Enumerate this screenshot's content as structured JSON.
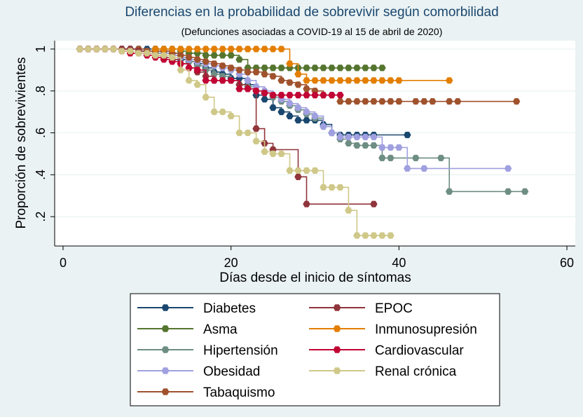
{
  "colors": {
    "background": "#eaf2f3",
    "plot_background": "#ffffff",
    "grid": "#eaf2f3",
    "axis": "#000000",
    "title": "#1a476f"
  },
  "chart_data": {
    "type": "line",
    "title": "Diferencias en la probabilidad de sobrevivir según comorbilidad",
    "subtitle": "(Defunciones asociadas a COVID-19 al 15 de abril de 2020)",
    "xlabel": "Días desde el inicio de síntomas",
    "ylabel": "Proporción de sobrevivientes",
    "xlim": [
      -1,
      61
    ],
    "ylim": [
      0.06,
      1.04
    ],
    "xticks": [
      {
        "value": 0,
        "label": "0"
      },
      {
        "value": 20,
        "label": "20"
      },
      {
        "value": 40,
        "label": "40"
      },
      {
        "value": 60,
        "label": "60"
      }
    ],
    "yticks": [
      {
        "value": 0.2,
        "label": ".2"
      },
      {
        "value": 0.4,
        "label": ".4"
      },
      {
        "value": 0.6,
        "label": ".6"
      },
      {
        "value": 0.8,
        "label": ".8"
      },
      {
        "value": 1.0,
        "label": "1"
      }
    ],
    "grid": true,
    "legend_position": "bottom",
    "series": [
      {
        "name": "Diabetes",
        "color": "#1a476f",
        "x": [
          2,
          3,
          4,
          5,
          6,
          7,
          8,
          9,
          10,
          11,
          12,
          13,
          14,
          15,
          16,
          17,
          18,
          19,
          20,
          21,
          22,
          23,
          24,
          25,
          26,
          27,
          28,
          29,
          30,
          31,
          32,
          33,
          34,
          35,
          36,
          37,
          41
        ],
        "y": [
          1,
          1,
          1,
          1,
          1,
          1,
          1,
          1,
          1,
          1,
          0.99,
          0.98,
          0.95,
          0.94,
          0.93,
          0.91,
          0.89,
          0.88,
          0.86,
          0.86,
          0.83,
          0.78,
          0.76,
          0.72,
          0.7,
          0.68,
          0.66,
          0.66,
          0.66,
          0.64,
          0.6,
          0.59,
          0.59,
          0.59,
          0.59,
          0.59,
          0.59
        ]
      },
      {
        "name": "Asma",
        "color": "#55752f",
        "x": [
          11,
          12,
          13,
          14,
          15,
          16,
          17,
          18,
          19,
          20,
          21,
          22,
          23,
          24,
          25,
          26,
          27,
          28,
          29,
          30,
          31,
          32,
          33,
          34,
          35,
          36,
          37,
          38
        ],
        "y": [
          1,
          1,
          1,
          0.99,
          0.98,
          0.98,
          0.97,
          0.97,
          0.97,
          0.97,
          0.95,
          0.91,
          0.91,
          0.91,
          0.91,
          0.91,
          0.91,
          0.91,
          0.91,
          0.91,
          0.91,
          0.91,
          0.91,
          0.91,
          0.91,
          0.91,
          0.91,
          0.91
        ]
      },
      {
        "name": "Hipertensión",
        "color": "#6e8e84",
        "x": [
          2,
          3,
          4,
          5,
          6,
          7,
          8,
          9,
          10,
          11,
          12,
          13,
          14,
          15,
          16,
          17,
          18,
          19,
          20,
          21,
          22,
          23,
          24,
          25,
          26,
          27,
          28,
          29,
          30,
          31,
          32,
          33,
          34,
          35,
          36,
          37,
          38,
          39,
          42,
          45,
          46,
          53,
          55
        ],
        "y": [
          1,
          1,
          1,
          1,
          1,
          1,
          1,
          0.99,
          0.99,
          0.98,
          0.98,
          0.97,
          0.96,
          0.94,
          0.92,
          0.9,
          0.88,
          0.87,
          0.85,
          0.83,
          0.82,
          0.8,
          0.79,
          0.77,
          0.75,
          0.73,
          0.71,
          0.69,
          0.67,
          0.63,
          0.6,
          0.57,
          0.55,
          0.54,
          0.54,
          0.54,
          0.48,
          0.48,
          0.48,
          0.48,
          0.32,
          0.32,
          0.32
        ]
      },
      {
        "name": "Obesidad",
        "color": "#a0a0e0",
        "x": [
          2,
          3,
          4,
          5,
          6,
          7,
          8,
          9,
          10,
          11,
          12,
          13,
          14,
          15,
          16,
          17,
          18,
          19,
          20,
          21,
          22,
          23,
          24,
          25,
          26,
          27,
          28,
          29,
          30,
          31,
          32,
          33,
          34,
          35,
          36,
          37,
          38,
          39,
          40,
          41,
          43,
          53
        ],
        "y": [
          1,
          1,
          1,
          1,
          1,
          1,
          1,
          0.99,
          0.99,
          0.99,
          0.98,
          0.97,
          0.96,
          0.95,
          0.94,
          0.93,
          0.92,
          0.91,
          0.9,
          0.88,
          0.85,
          0.82,
          0.8,
          0.78,
          0.76,
          0.74,
          0.72,
          0.7,
          0.68,
          0.63,
          0.6,
          0.58,
          0.58,
          0.58,
          0.58,
          0.58,
          0.53,
          0.53,
          0.53,
          0.43,
          0.43,
          0.43
        ]
      },
      {
        "name": "Tabaquismo",
        "color": "#a0522d",
        "x": [
          2,
          3,
          4,
          5,
          6,
          7,
          8,
          9,
          10,
          11,
          12,
          13,
          14,
          15,
          16,
          17,
          18,
          19,
          20,
          21,
          22,
          23,
          24,
          25,
          26,
          27,
          28,
          29,
          30,
          31,
          32,
          33,
          34,
          35,
          36,
          37,
          38,
          39,
          40,
          42,
          43,
          44,
          46,
          47,
          54
        ],
        "y": [
          1,
          1,
          1,
          1,
          1,
          1,
          1,
          1,
          0.99,
          0.99,
          0.99,
          0.98,
          0.97,
          0.96,
          0.95,
          0.94,
          0.93,
          0.92,
          0.91,
          0.9,
          0.89,
          0.89,
          0.88,
          0.87,
          0.85,
          0.84,
          0.83,
          0.81,
          0.8,
          0.78,
          0.78,
          0.75,
          0.75,
          0.75,
          0.75,
          0.75,
          0.75,
          0.75,
          0.75,
          0.75,
          0.75,
          0.75,
          0.75,
          0.75,
          0.75
        ]
      },
      {
        "name": "EPOC",
        "color": "#90353b",
        "x": [
          2,
          3,
          4,
          5,
          6,
          7,
          8,
          9,
          10,
          11,
          12,
          13,
          14,
          15,
          16,
          17,
          18,
          19,
          20,
          21,
          22,
          23,
          24,
          25,
          28,
          29,
          37
        ],
        "y": [
          1,
          1,
          1,
          1,
          1,
          1,
          1,
          0.99,
          0.98,
          0.97,
          0.96,
          0.95,
          0.93,
          0.91,
          0.89,
          0.87,
          0.85,
          0.85,
          0.85,
          0.83,
          0.81,
          0.62,
          0.55,
          0.52,
          0.39,
          0.26,
          0.26
        ]
      },
      {
        "name": "Inmunosupresión",
        "color": "#e37e00",
        "x": [
          11,
          12,
          13,
          14,
          15,
          16,
          17,
          18,
          19,
          20,
          21,
          22,
          23,
          24,
          25,
          26,
          27,
          28,
          29,
          30,
          31,
          32,
          33,
          34,
          35,
          36,
          37,
          38,
          39,
          40,
          46
        ],
        "y": [
          1,
          1,
          1,
          1,
          1,
          1,
          1,
          1,
          1,
          1,
          1,
          1,
          1,
          1,
          1,
          1,
          0.93,
          0.88,
          0.85,
          0.85,
          0.85,
          0.85,
          0.85,
          0.85,
          0.85,
          0.85,
          0.85,
          0.85,
          0.85,
          0.85,
          0.85
        ]
      },
      {
        "name": "Cardiovascular",
        "color": "#c10534",
        "x": [
          2,
          3,
          4,
          5,
          6,
          7,
          8,
          9,
          10,
          11,
          12,
          13,
          14,
          15,
          16,
          17,
          18,
          19,
          20,
          21,
          22,
          23,
          24,
          25,
          26,
          27,
          28,
          29,
          30,
          31,
          32,
          33
        ],
        "y": [
          1,
          1,
          1,
          1,
          1,
          0.99,
          0.98,
          0.98,
          0.97,
          0.96,
          0.95,
          0.94,
          0.93,
          0.91,
          0.9,
          0.85,
          0.85,
          0.85,
          0.85,
          0.81,
          0.81,
          0.8,
          0.79,
          0.78,
          0.78,
          0.78,
          0.78,
          0.78,
          0.78,
          0.78,
          0.78,
          0.78
        ]
      },
      {
        "name": "Renal crónica",
        "color": "#cfc888",
        "x": [
          2,
          3,
          4,
          5,
          6,
          7,
          8,
          9,
          10,
          11,
          12,
          13,
          14,
          15,
          16,
          17,
          18,
          19,
          20,
          21,
          22,
          23,
          24,
          25,
          26,
          27,
          28,
          29,
          30,
          31,
          32,
          33,
          34,
          35,
          36,
          37,
          38,
          39
        ],
        "y": [
          1,
          1,
          1,
          1,
          1,
          0.99,
          0.99,
          0.98,
          0.98,
          0.97,
          0.97,
          0.96,
          0.9,
          0.85,
          0.83,
          0.77,
          0.7,
          0.7,
          0.68,
          0.6,
          0.6,
          0.56,
          0.51,
          0.5,
          0.5,
          0.42,
          0.42,
          0.42,
          0.42,
          0.34,
          0.34,
          0.34,
          0.23,
          0.11,
          0.11,
          0.11,
          0.11,
          0.11
        ]
      }
    ],
    "legend_order": [
      "Diabetes",
      "EPOC",
      "Asma",
      "Inmunosupresión",
      "Hipertensión",
      "Cardiovascular",
      "Obesidad",
      "Renal crónica",
      "Tabaquismo"
    ]
  }
}
